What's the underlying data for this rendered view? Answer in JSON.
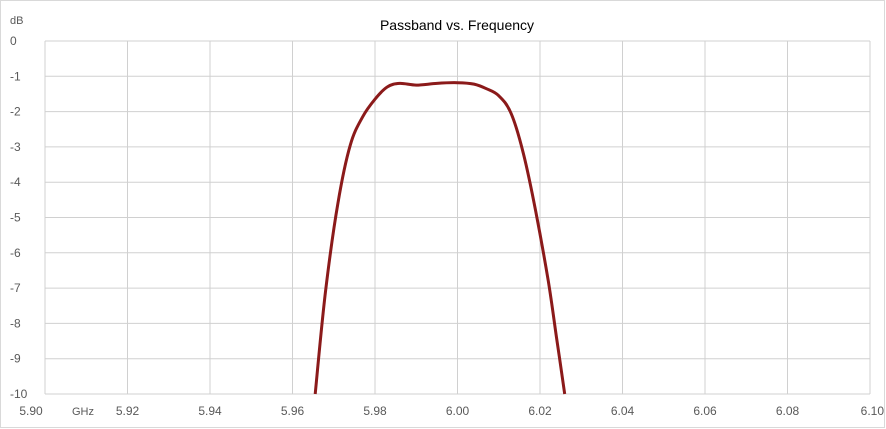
{
  "chart_data": {
    "type": "line",
    "title": "Passband vs. Frequency",
    "ylabel": "dB",
    "xlabel": "GHz",
    "xlim": [
      5.9,
      6.1
    ],
    "ylim": [
      -10,
      0
    ],
    "x_ticks": [
      "5.90",
      "5.92",
      "5.94",
      "5.96",
      "5.98",
      "6.00",
      "6.02",
      "6.04",
      "6.06",
      "6.08",
      "6.10"
    ],
    "y_ticks": [
      "0",
      "-1",
      "-2",
      "-3",
      "-4",
      "-5",
      "-6",
      "-7",
      "-8",
      "-9",
      "-10"
    ],
    "grid": true,
    "legend": "none",
    "series": [
      {
        "color": "#8b1a1a",
        "x": [
          5.9655,
          5.968,
          5.971,
          5.974,
          5.977,
          5.98,
          5.983,
          5.986,
          5.99,
          5.995,
          6.0,
          6.004,
          6.007,
          6.01,
          6.013,
          6.016,
          6.019,
          6.022,
          6.024,
          6.026
        ],
        "y": [
          -10.0,
          -7.1,
          -4.6,
          -2.95,
          -2.15,
          -1.65,
          -1.3,
          -1.2,
          -1.25,
          -1.2,
          -1.18,
          -1.22,
          -1.35,
          -1.55,
          -2.05,
          -3.2,
          -4.85,
          -6.8,
          -8.4,
          -10.0
        ]
      }
    ]
  }
}
